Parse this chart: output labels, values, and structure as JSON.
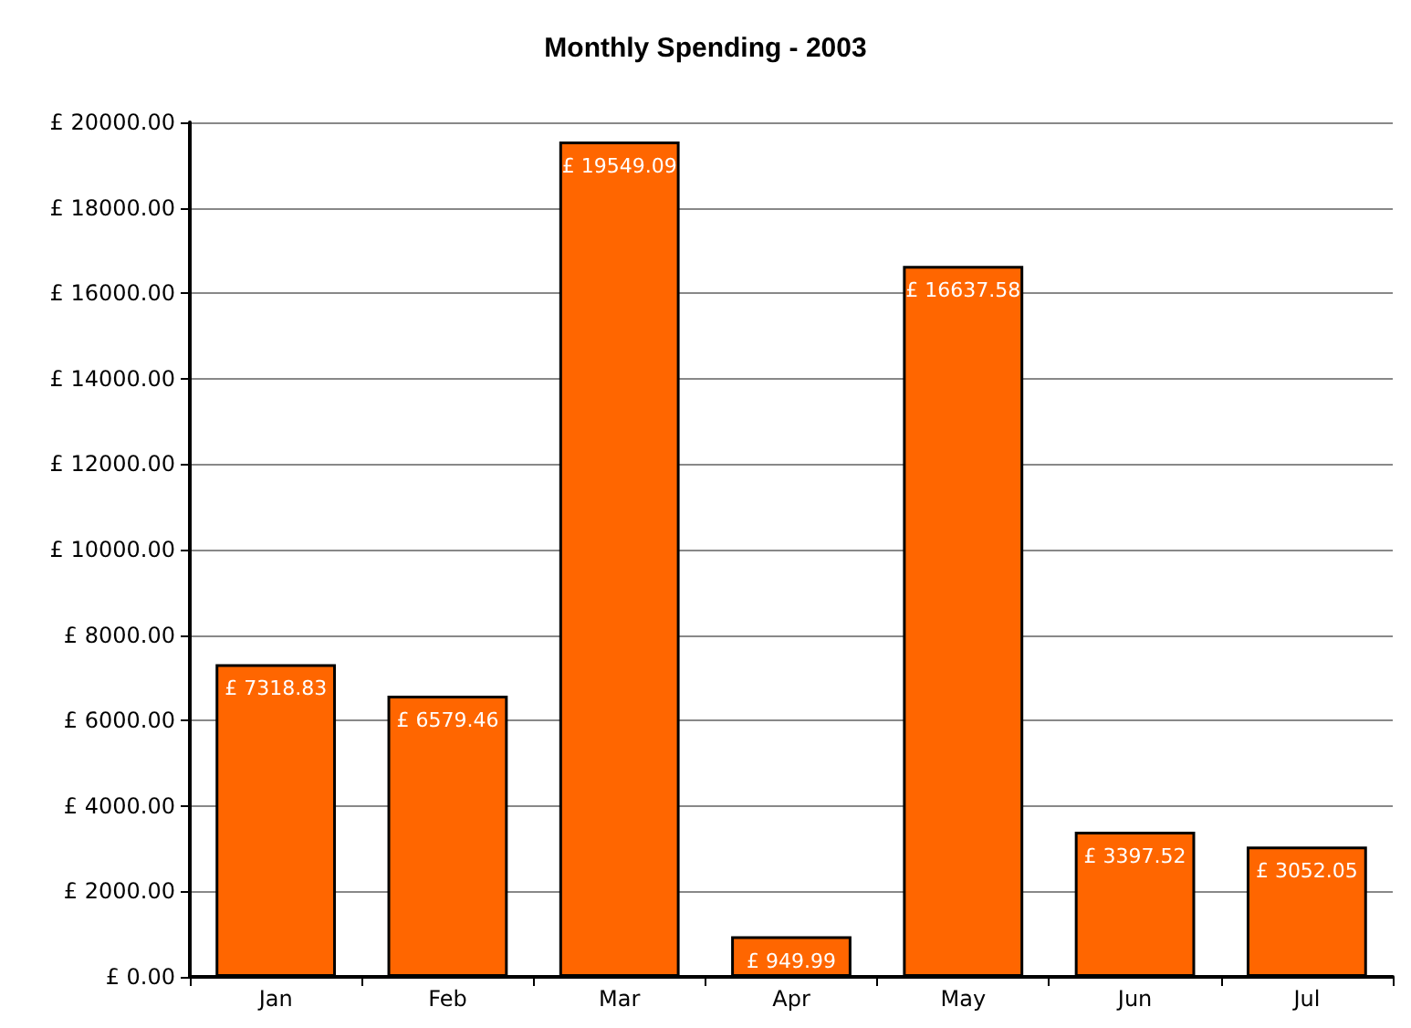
{
  "chart_data": {
    "type": "bar",
    "title": "Monthly Spending - 2003",
    "categories": [
      "Jan",
      "Feb",
      "Mar",
      "Apr",
      "May",
      "Jun",
      "Jul"
    ],
    "values": [
      7318.83,
      6579.46,
      19549.09,
      949.99,
      16637.58,
      3397.52,
      3052.05
    ],
    "value_labels": [
      "£ 7318.83",
      "£ 6579.46",
      "£ 19549.09",
      "£ 949.99",
      "£ 16637.58",
      "£ 3397.52",
      "£ 3052.05"
    ],
    "color": "#ff6600",
    "ylim": [
      0,
      20000
    ],
    "yticks": [
      {
        "value": 0,
        "label": "£ 0.00"
      },
      {
        "value": 2000,
        "label": "£ 2000.00"
      },
      {
        "value": 4000,
        "label": "£ 4000.00"
      },
      {
        "value": 6000,
        "label": "£ 6000.00"
      },
      {
        "value": 8000,
        "label": "£ 8000.00"
      },
      {
        "value": 10000,
        "label": "£ 10000.00"
      },
      {
        "value": 12000,
        "label": "£ 12000.00"
      },
      {
        "value": 14000,
        "label": "£ 14000.00"
      },
      {
        "value": 16000,
        "label": "£ 16000.00"
      },
      {
        "value": 18000,
        "label": "£ 18000.00"
      },
      {
        "value": 20000,
        "label": "£ 20000.00"
      }
    ],
    "grid": "y"
  }
}
